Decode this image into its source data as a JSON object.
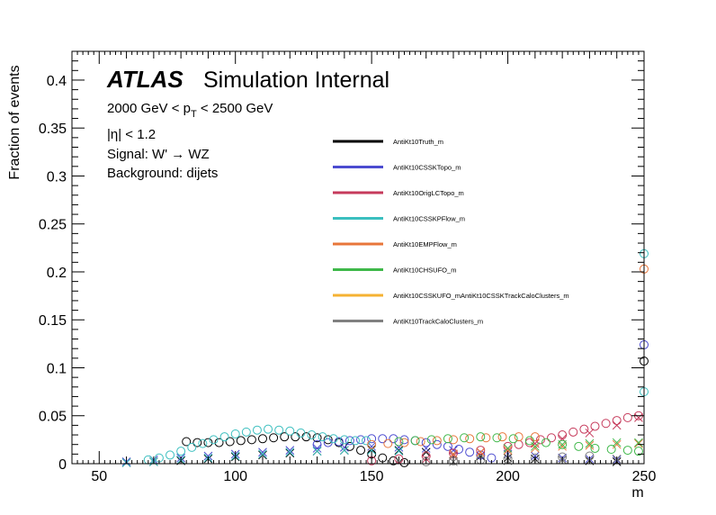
{
  "chart_data": {
    "type": "scatter",
    "title": "",
    "xlabel": "m",
    "ylabel": "Fraction of events",
    "xlim": [
      40,
      250
    ],
    "ylim": [
      0,
      0.43
    ],
    "x_ticks": [
      "50",
      "100",
      "150",
      "200",
      "250"
    ],
    "y_ticks": [
      "0",
      "0.05",
      "0.1",
      "0.15",
      "0.2",
      "0.25",
      "0.3",
      "0.35",
      "0.4"
    ],
    "annotations": {
      "atlas": "ATLAS",
      "label": "Simulation Internal",
      "pt_prefix": "2000 GeV < p",
      "pt_sub": "T",
      "pt_suffix": " < 2500 GeV",
      "eta": "|η| < 1.2",
      "signal": "Signal: W' → WZ",
      "background": "Background: dijets"
    },
    "legend_placement": "top-center",
    "series": [
      {
        "name": "AntiKt10Truth_m",
        "color": "#000000",
        "signal": [
          [
            82,
            0.023
          ],
          [
            86,
            0.022
          ],
          [
            90,
            0.022
          ],
          [
            94,
            0.022
          ],
          [
            98,
            0.023
          ],
          [
            102,
            0.024
          ],
          [
            106,
            0.025
          ],
          [
            110,
            0.026
          ],
          [
            114,
            0.027
          ],
          [
            118,
            0.028
          ],
          [
            122,
            0.028
          ],
          [
            126,
            0.028
          ],
          [
            130,
            0.027
          ],
          [
            134,
            0.025
          ],
          [
            138,
            0.022
          ],
          [
            142,
            0.018
          ],
          [
            146,
            0.014
          ],
          [
            150,
            0.01
          ],
          [
            154,
            0.006
          ],
          [
            158,
            0.003
          ],
          [
            162,
            0.001
          ],
          [
            250,
            0.107
          ]
        ],
        "background": [
          [
            60,
            0.001
          ],
          [
            70,
            0.002
          ],
          [
            80,
            0.003
          ],
          [
            90,
            0.005
          ],
          [
            100,
            0.007
          ],
          [
            110,
            0.009
          ],
          [
            120,
            0.011
          ],
          [
            130,
            0.013
          ],
          [
            140,
            0.014
          ],
          [
            150,
            0.015
          ],
          [
            160,
            0.014
          ],
          [
            170,
            0.012
          ],
          [
            180,
            0.01
          ],
          [
            190,
            0.008
          ],
          [
            200,
            0.006
          ],
          [
            210,
            0.005
          ],
          [
            220,
            0.004
          ],
          [
            230,
            0.003
          ],
          [
            240,
            0.002
          ]
        ]
      },
      {
        "name": "AntiKt10CSSKTopo_m",
        "color": "#4b4bd0",
        "signal": [
          [
            130,
            0.02
          ],
          [
            134,
            0.022
          ],
          [
            138,
            0.023
          ],
          [
            142,
            0.024
          ],
          [
            146,
            0.025
          ],
          [
            150,
            0.026
          ],
          [
            154,
            0.026
          ],
          [
            158,
            0.026
          ],
          [
            162,
            0.025
          ],
          [
            166,
            0.024
          ],
          [
            170,
            0.022
          ],
          [
            174,
            0.02
          ],
          [
            178,
            0.018
          ],
          [
            182,
            0.015
          ],
          [
            186,
            0.012
          ],
          [
            190,
            0.009
          ],
          [
            194,
            0.006
          ],
          [
            250,
            0.124
          ]
        ],
        "background": [
          [
            60,
            0.002
          ],
          [
            70,
            0.004
          ],
          [
            80,
            0.006
          ],
          [
            90,
            0.008
          ],
          [
            100,
            0.01
          ],
          [
            110,
            0.012
          ],
          [
            120,
            0.014
          ],
          [
            130,
            0.016
          ],
          [
            140,
            0.017
          ],
          [
            150,
            0.018
          ],
          [
            160,
            0.017
          ],
          [
            170,
            0.016
          ],
          [
            180,
            0.014
          ],
          [
            190,
            0.012
          ],
          [
            200,
            0.01
          ],
          [
            210,
            0.008
          ],
          [
            220,
            0.006
          ],
          [
            230,
            0.005
          ],
          [
            240,
            0.004
          ]
        ]
      },
      {
        "name": "AntiKt10OrigLCTopo_m",
        "color": "#c63a5b",
        "signal": [
          [
            150,
            0.003
          ],
          [
            160,
            0.005
          ],
          [
            170,
            0.008
          ],
          [
            180,
            0.011
          ],
          [
            190,
            0.014
          ],
          [
            200,
            0.018
          ],
          [
            204,
            0.02
          ],
          [
            208,
            0.022
          ],
          [
            212,
            0.025
          ],
          [
            216,
            0.027
          ],
          [
            220,
            0.03
          ],
          [
            224,
            0.033
          ],
          [
            228,
            0.036
          ],
          [
            232,
            0.039
          ],
          [
            236,
            0.042
          ],
          [
            240,
            0.045
          ],
          [
            244,
            0.048
          ],
          [
            248,
            0.05
          ]
        ],
        "background": [
          [
            170,
            0.005
          ],
          [
            180,
            0.008
          ],
          [
            190,
            0.012
          ],
          [
            200,
            0.016
          ],
          [
            210,
            0.021
          ],
          [
            220,
            0.026
          ],
          [
            230,
            0.032
          ],
          [
            240,
            0.04
          ],
          [
            248,
            0.048
          ]
        ]
      },
      {
        "name": "AntiKt10CSSKPFlow_m",
        "color": "#3bbfbf",
        "signal": [
          [
            68,
            0.004
          ],
          [
            72,
            0.006
          ],
          [
            76,
            0.009
          ],
          [
            80,
            0.013
          ],
          [
            84,
            0.017
          ],
          [
            88,
            0.021
          ],
          [
            92,
            0.025
          ],
          [
            96,
            0.028
          ],
          [
            100,
            0.031
          ],
          [
            104,
            0.033
          ],
          [
            108,
            0.035
          ],
          [
            112,
            0.036
          ],
          [
            116,
            0.035
          ],
          [
            120,
            0.034
          ],
          [
            124,
            0.032
          ],
          [
            128,
            0.03
          ],
          [
            132,
            0.028
          ],
          [
            136,
            0.026
          ],
          [
            140,
            0.025
          ],
          [
            144,
            0.024
          ],
          [
            148,
            0.024
          ],
          [
            250,
            0.075
          ],
          [
            250,
            0.219
          ]
        ],
        "background": [
          [
            60,
            0.001
          ],
          [
            70,
            0.002
          ],
          [
            80,
            0.004
          ],
          [
            90,
            0.006
          ],
          [
            100,
            0.008
          ],
          [
            110,
            0.01
          ],
          [
            120,
            0.012
          ],
          [
            130,
            0.013
          ],
          [
            140,
            0.014
          ],
          [
            150,
            0.014
          ],
          [
            160,
            0.013
          ]
        ]
      },
      {
        "name": "AntiKt10EMPFlow_m",
        "color": "#e8763a",
        "signal": [
          [
            150,
            0.02
          ],
          [
            156,
            0.021
          ],
          [
            162,
            0.022
          ],
          [
            168,
            0.023
          ],
          [
            174,
            0.024
          ],
          [
            180,
            0.025
          ],
          [
            186,
            0.026
          ],
          [
            192,
            0.027
          ],
          [
            198,
            0.028
          ],
          [
            204,
            0.028
          ],
          [
            210,
            0.028
          ],
          [
            250,
            0.203
          ]
        ],
        "background": [
          [
            180,
            0.01
          ],
          [
            190,
            0.012
          ],
          [
            200,
            0.014
          ],
          [
            210,
            0.016
          ],
          [
            220,
            0.018
          ],
          [
            230,
            0.019
          ],
          [
            240,
            0.02
          ],
          [
            248,
            0.021
          ]
        ]
      },
      {
        "name": "AntiKt10CHSUFO_m",
        "color": "#3fb84a",
        "signal": [
          [
            160,
            0.023
          ],
          [
            166,
            0.024
          ],
          [
            172,
            0.025
          ],
          [
            178,
            0.026
          ],
          [
            184,
            0.027
          ],
          [
            190,
            0.028
          ],
          [
            196,
            0.027
          ],
          [
            202,
            0.026
          ],
          [
            208,
            0.024
          ],
          [
            214,
            0.022
          ],
          [
            220,
            0.02
          ],
          [
            226,
            0.018
          ],
          [
            232,
            0.016
          ],
          [
            238,
            0.015
          ],
          [
            244,
            0.014
          ],
          [
            248,
            0.013
          ]
        ],
        "background": [
          [
            200,
            0.016
          ],
          [
            210,
            0.018
          ],
          [
            220,
            0.02
          ],
          [
            230,
            0.021
          ],
          [
            240,
            0.022
          ],
          [
            248,
            0.022
          ]
        ]
      },
      {
        "name": "AntiKt10CSSKUFO_mAntiKt10CSSKTrackCaloClusters_m",
        "color": "#f5b233",
        "signal": [],
        "background": []
      },
      {
        "name": "AntiKt10TrackCaloClusters_m",
        "color": "#808080",
        "signal": [
          [
            170,
            0.002
          ],
          [
            180,
            0.003
          ],
          [
            190,
            0.004
          ],
          [
            200,
            0.005
          ],
          [
            210,
            0.006
          ],
          [
            220,
            0.007
          ],
          [
            230,
            0.008
          ]
        ],
        "background": [
          [
            180,
            0.002
          ],
          [
            200,
            0.003
          ],
          [
            220,
            0.004
          ],
          [
            240,
            0.005
          ]
        ]
      }
    ]
  }
}
